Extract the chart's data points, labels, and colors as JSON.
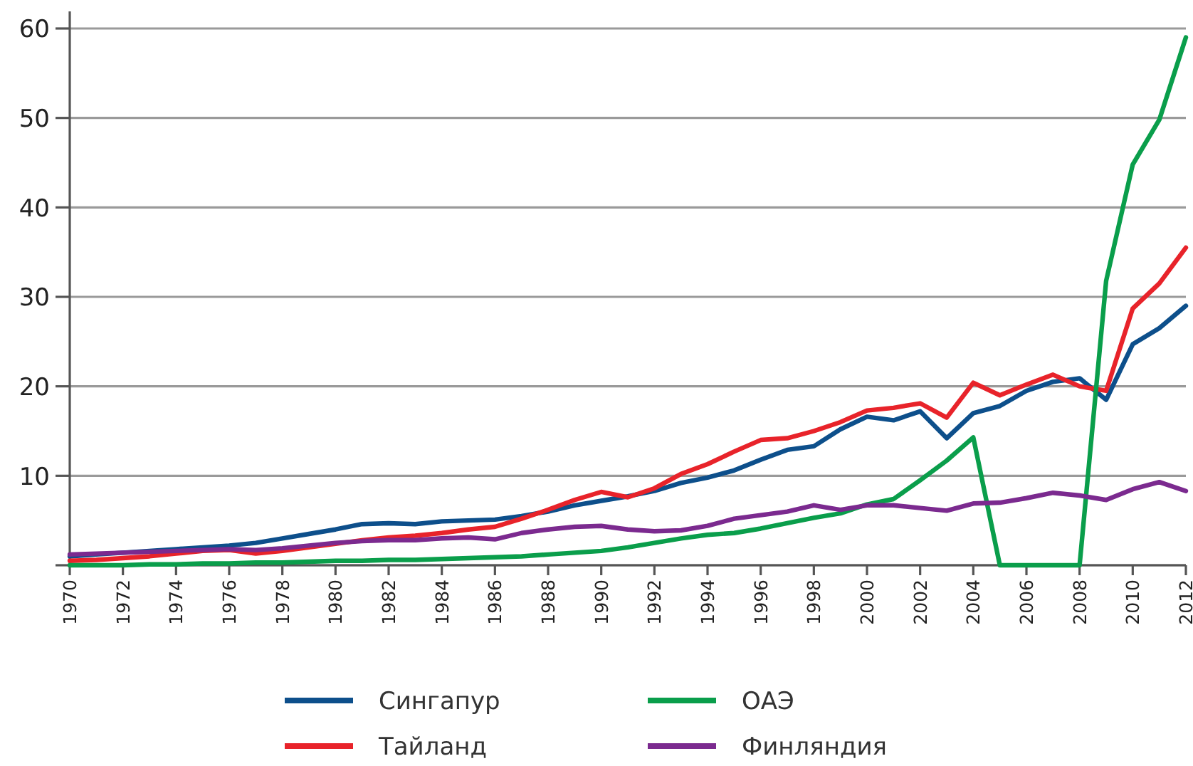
{
  "chart_data": {
    "type": "line",
    "x": [
      1970,
      1971,
      1972,
      1973,
      1974,
      1975,
      1976,
      1977,
      1978,
      1979,
      1980,
      1981,
      1982,
      1983,
      1984,
      1985,
      1986,
      1987,
      1988,
      1989,
      1990,
      1991,
      1992,
      1993,
      1994,
      1995,
      1996,
      1997,
      1998,
      1999,
      2000,
      2001,
      2002,
      2003,
      2004,
      2005,
      2006,
      2007,
      2008,
      2009,
      2010,
      2011,
      2012
    ],
    "series": [
      {
        "name": "Сингапур",
        "color": "#0d4f8b",
        "values": [
          1.0,
          1.2,
          1.4,
          1.6,
          1.8,
          2.0,
          2.2,
          2.5,
          3.0,
          3.5,
          4.0,
          4.6,
          4.7,
          4.6,
          4.9,
          5.0,
          5.1,
          5.5,
          6.0,
          6.7,
          7.2,
          7.7,
          8.3,
          9.2,
          9.8,
          10.6,
          11.8,
          12.9,
          13.3,
          15.2,
          16.6,
          16.2,
          17.2,
          14.2,
          17.0,
          17.8,
          19.5,
          20.5,
          20.9,
          18.5,
          24.7,
          26.5,
          29.0
        ]
      },
      {
        "name": "Тайланд",
        "color": "#e8232a",
        "values": [
          0.5,
          0.6,
          0.8,
          1.0,
          1.3,
          1.6,
          1.7,
          1.3,
          1.6,
          2.0,
          2.4,
          2.8,
          3.1,
          3.3,
          3.6,
          4.0,
          4.3,
          5.2,
          6.2,
          7.3,
          8.2,
          7.6,
          8.6,
          10.2,
          11.3,
          12.7,
          14.0,
          14.2,
          15.0,
          16.0,
          17.3,
          17.6,
          18.1,
          16.5,
          20.4,
          19.0,
          20.2,
          21.3,
          20.0,
          19.5,
          28.7,
          31.5,
          35.5
        ]
      },
      {
        "name": "ОАЭ",
        "color": "#0a9e4b",
        "values": [
          0,
          0,
          0,
          0.1,
          0.1,
          0.2,
          0.2,
          0.3,
          0.3,
          0.4,
          0.5,
          0.5,
          0.6,
          0.6,
          0.7,
          0.8,
          0.9,
          1.0,
          1.2,
          1.4,
          1.6,
          2.0,
          2.5,
          3.0,
          3.4,
          3.6,
          4.1,
          4.7,
          5.3,
          5.8,
          6.8,
          7.4,
          9.5,
          11.7,
          14.3,
          0,
          0,
          0,
          0,
          31.8,
          44.8,
          49.8,
          59.0
        ]
      },
      {
        "name": "Финляндия",
        "color": "#7b2a8f",
        "values": [
          1.2,
          1.3,
          1.4,
          1.5,
          1.6,
          1.7,
          1.8,
          1.7,
          1.9,
          2.2,
          2.5,
          2.7,
          2.8,
          2.8,
          3.0,
          3.1,
          2.9,
          3.6,
          4.0,
          4.3,
          4.4,
          4.0,
          3.8,
          3.9,
          4.4,
          5.2,
          5.6,
          6.0,
          6.7,
          6.2,
          6.7,
          6.7,
          6.4,
          6.1,
          6.9,
          7.0,
          7.5,
          8.1,
          7.8,
          7.3,
          8.5,
          9.3,
          8.3
        ]
      }
    ],
    "xlim": [
      1970,
      2012
    ],
    "xticks": [
      1970,
      1972,
      1974,
      1976,
      1978,
      1980,
      1982,
      1984,
      1986,
      1988,
      1990,
      1992,
      1994,
      1996,
      1998,
      2000,
      2002,
      2004,
      2006,
      2008,
      2010,
      2012
    ],
    "ylim": [
      0,
      60
    ],
    "yticks": [
      {
        "value": 0,
        "label": null
      },
      10,
      20,
      30,
      40,
      50,
      60
    ],
    "grid": "y",
    "legend": "bottom",
    "marker": "none",
    "line_style": "solid"
  }
}
